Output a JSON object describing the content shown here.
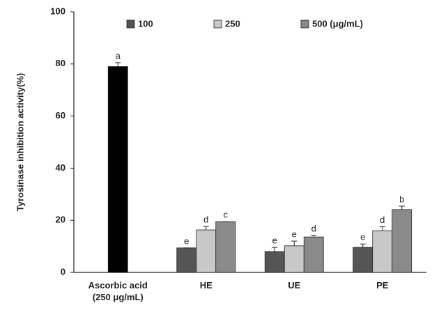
{
  "chart_data": {
    "type": "bar",
    "y_label": "Tyrosinase inhibition activity(%)",
    "categories": [
      "Ascorbic acid\n(250 μg/mL)",
      "HE",
      "UE",
      "PE"
    ],
    "reference": {
      "color": "#000000",
      "values": [
        79,
        null,
        null,
        null
      ],
      "errors": [
        1.5,
        null,
        null,
        null
      ],
      "letters": [
        "a",
        null,
        null,
        null
      ]
    },
    "series": [
      {
        "name": "100",
        "color": "#555555",
        "values": [
          null,
          9.4,
          8,
          9.6
        ],
        "errors": [
          null,
          0,
          1.6,
          1.3
        ],
        "letters": [
          null,
          "e",
          "e",
          "e"
        ]
      },
      {
        "name": "250",
        "color": "#c8c8c8",
        "values": [
          null,
          16.3,
          10.2,
          16
        ],
        "errors": [
          null,
          1.3,
          1.8,
          1.5
        ],
        "letters": [
          null,
          "d",
          "e",
          "d"
        ]
      },
      {
        "name": "500 (μg/mL)",
        "color": "#8a8a8a",
        "values": [
          null,
          19.5,
          13.6,
          24.1
        ],
        "errors": [
          null,
          0,
          0.6,
          1.3
        ],
        "letters": [
          null,
          "c",
          "d",
          "b"
        ]
      }
    ],
    "ylim": [
      0,
      100
    ],
    "yticks": [
      0,
      20,
      40,
      60,
      80,
      100
    ],
    "grid": false
  }
}
